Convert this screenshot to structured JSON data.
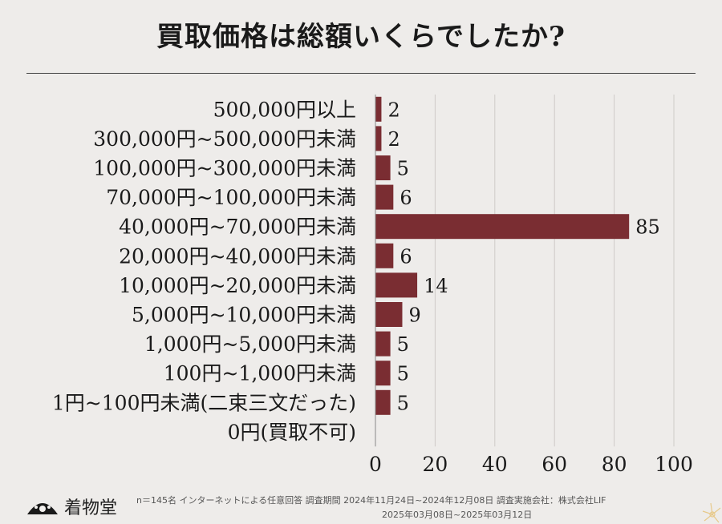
{
  "title": "買取価格は総額いくらでしたか?",
  "chart_data": {
    "type": "bar",
    "orientation": "horizontal",
    "title": "買取価格は総額いくらでしたか?",
    "categories": [
      "500,000円以上",
      "300,000円~500,000円未満",
      "100,000円~300,000円未満",
      "70,000円~100,000円未満",
      "40,000円~70,000円未満",
      "20,000円~40,000円未満",
      "10,000円~20,000円未満",
      "5,000円~10,000円未満",
      "1,000円~5,000円未満",
      "100円~1,000円未満",
      "1円~100円未満(二束三文だった)",
      "0円(買取不可)"
    ],
    "values": [
      2,
      2,
      5,
      6,
      85,
      6,
      14,
      9,
      5,
      5,
      5,
      0
    ],
    "value_labels": [
      "2",
      "2",
      "5",
      "6",
      "85",
      "6",
      "14",
      "9",
      "5",
      "5",
      "5",
      ""
    ],
    "xlim": [
      0,
      100
    ],
    "xticks": [
      0,
      20,
      40,
      60,
      80,
      100
    ],
    "grid": true,
    "bar_color": "#7a2d32"
  },
  "footer": {
    "logo_text": "着物堂",
    "note_line1": "n＝145名 インターネットによる任意回答 調査期間 2024年11月24日~2024年12月08日 調査実施会社：株式会社LIF",
    "note_line2": "2025年03月08日~2025年03月12日"
  }
}
